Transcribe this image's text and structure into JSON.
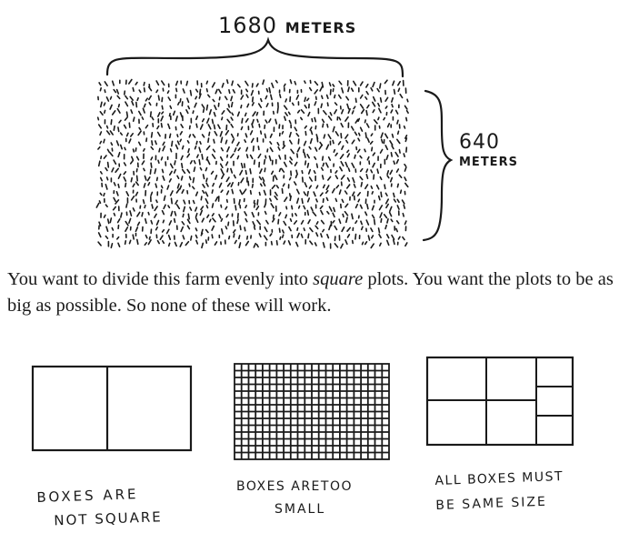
{
  "farm": {
    "width_number": "1680",
    "width_unit": "METERS",
    "height_number": "640",
    "height_unit": "METERS"
  },
  "paragraph": {
    "before": "You want to divide this farm evenly into ",
    "emphasis": "square",
    "after": " plots. You want the plots to be as big as possible. So none of these will work."
  },
  "examples": [
    {
      "caption_line1": "BOXES ARE",
      "caption_line2": "NOT SQUARE"
    },
    {
      "caption_line1": "BOXES ARETOO",
      "caption_line2": "SMALL"
    },
    {
      "caption_line1": "ALL BOXES MUST",
      "caption_line2": "BE SAME SIZE"
    }
  ],
  "colors": {
    "ink": "#1a1a1a",
    "background": "#ffffff"
  }
}
